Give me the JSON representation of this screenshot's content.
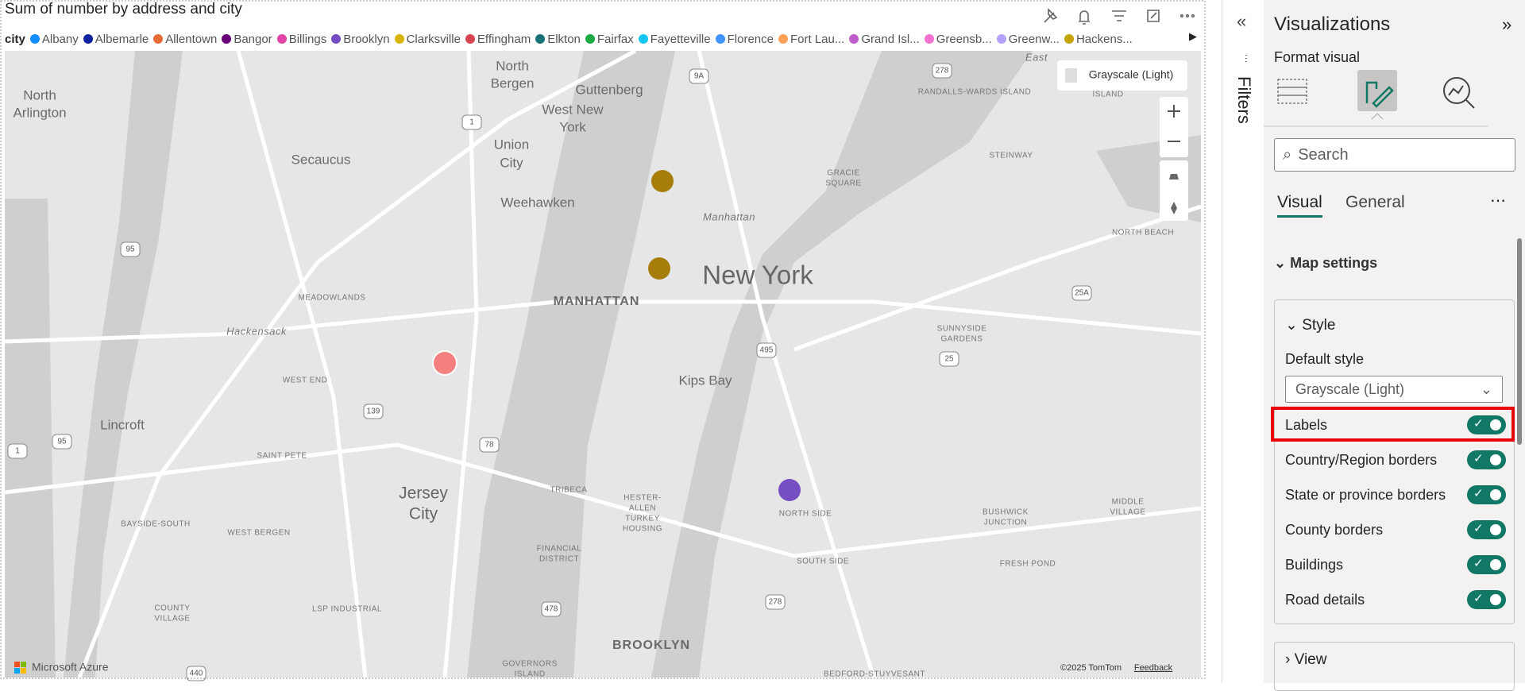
{
  "visual": {
    "title": "Sum of number by address and city",
    "legend": {
      "title": "city",
      "items": [
        {
          "name": "Albany",
          "color": "#118dff"
        },
        {
          "name": "Albemarle",
          "color": "#12239e"
        },
        {
          "name": "Allentown",
          "color": "#e66c37"
        },
        {
          "name": "Bangor",
          "color": "#6b007b"
        },
        {
          "name": "Billings",
          "color": "#e044a7"
        },
        {
          "name": "Brooklyn",
          "color": "#744ec2"
        },
        {
          "name": "Clarksville",
          "color": "#d9b300"
        },
        {
          "name": "Effingham",
          "color": "#d64550"
        },
        {
          "name": "Elkton",
          "color": "#197278"
        },
        {
          "name": "Fairfax",
          "color": "#1aab40"
        },
        {
          "name": "Fayetteville",
          "color": "#15c6f4"
        },
        {
          "name": "Florence",
          "color": "#4092ff"
        },
        {
          "name": "Fort Lau...",
          "color": "#ffa058"
        },
        {
          "name": "Grand Isl...",
          "color": "#be5dc9"
        },
        {
          "name": "Greensb...",
          "color": "#f472d0"
        },
        {
          "name": "Greenw...",
          "color": "#b5a1ff"
        },
        {
          "name": "Hackens...",
          "color": "#c4a200"
        }
      ]
    },
    "map_style_button": "Grayscale (Light)",
    "map_labels": [
      "North",
      "Arlington",
      "North",
      "Bergen",
      "Guttenberg",
      "West New",
      "York",
      "Union",
      "City",
      "Secaucus",
      "Weehawken",
      "Manhattan",
      "New York",
      "MANHATTAN",
      "MEADOWLANDS",
      "Hackensack",
      "WEST END",
      "Kips Bay",
      "Lincroft",
      "SAINT PETE",
      "Jersey",
      "City",
      "TRIBECA",
      "HESTER-",
      "ALLEN",
      "TURKEY",
      "HOUSING",
      "NORTH SIDE",
      "BAYSIDE-SOUTH",
      "WEST BERGEN",
      "FINANCIAL",
      "DISTRICT",
      "SOUTH SIDE",
      "COUNTY",
      "VILLAGE",
      "LSP INDUSTRIAL",
      "BROOKLYN",
      "GOVERNORS",
      "ISLAND",
      "RANDALLS-WARDS ISLAND",
      "STEINWAY",
      "GRACIE",
      "SQUARE",
      "NORTH BEACH",
      "SUNNYSIDE",
      "GARDENS",
      "BUSHWICK",
      "JUNCTION",
      "FRESH POND",
      "MIDDLE",
      "VILLAGE",
      "BEDFORD-STUYVESANT",
      "East",
      "ISLAND"
    ],
    "road_shields": [
      "9A",
      "278",
      "1",
      "95",
      "495",
      "25A",
      "25",
      "139",
      "78",
      "95",
      "1",
      "478",
      "278",
      "440"
    ],
    "attribution": {
      "brand": "Microsoft Azure",
      "copyright": "©2025 TomTom",
      "feedback": "Feedback"
    }
  },
  "filters_pane": {
    "title": "Filters"
  },
  "visualizations_pane": {
    "title": "Visualizations",
    "subtitle": "Format visual",
    "search_placeholder": "Search",
    "tabs": [
      "Visual",
      "General"
    ],
    "section": "Map settings",
    "card": {
      "title": "Style",
      "default_style_label": "Default style",
      "default_style_value": "Grayscale (Light)",
      "toggles": [
        {
          "label": "Labels",
          "on": true
        },
        {
          "label": "Country/Region borders",
          "on": true
        },
        {
          "label": "State or province borders",
          "on": true
        },
        {
          "label": "County borders",
          "on": true
        },
        {
          "label": "Buildings",
          "on": true
        },
        {
          "label": "Road details",
          "on": true
        }
      ]
    },
    "next_section": "View"
  }
}
